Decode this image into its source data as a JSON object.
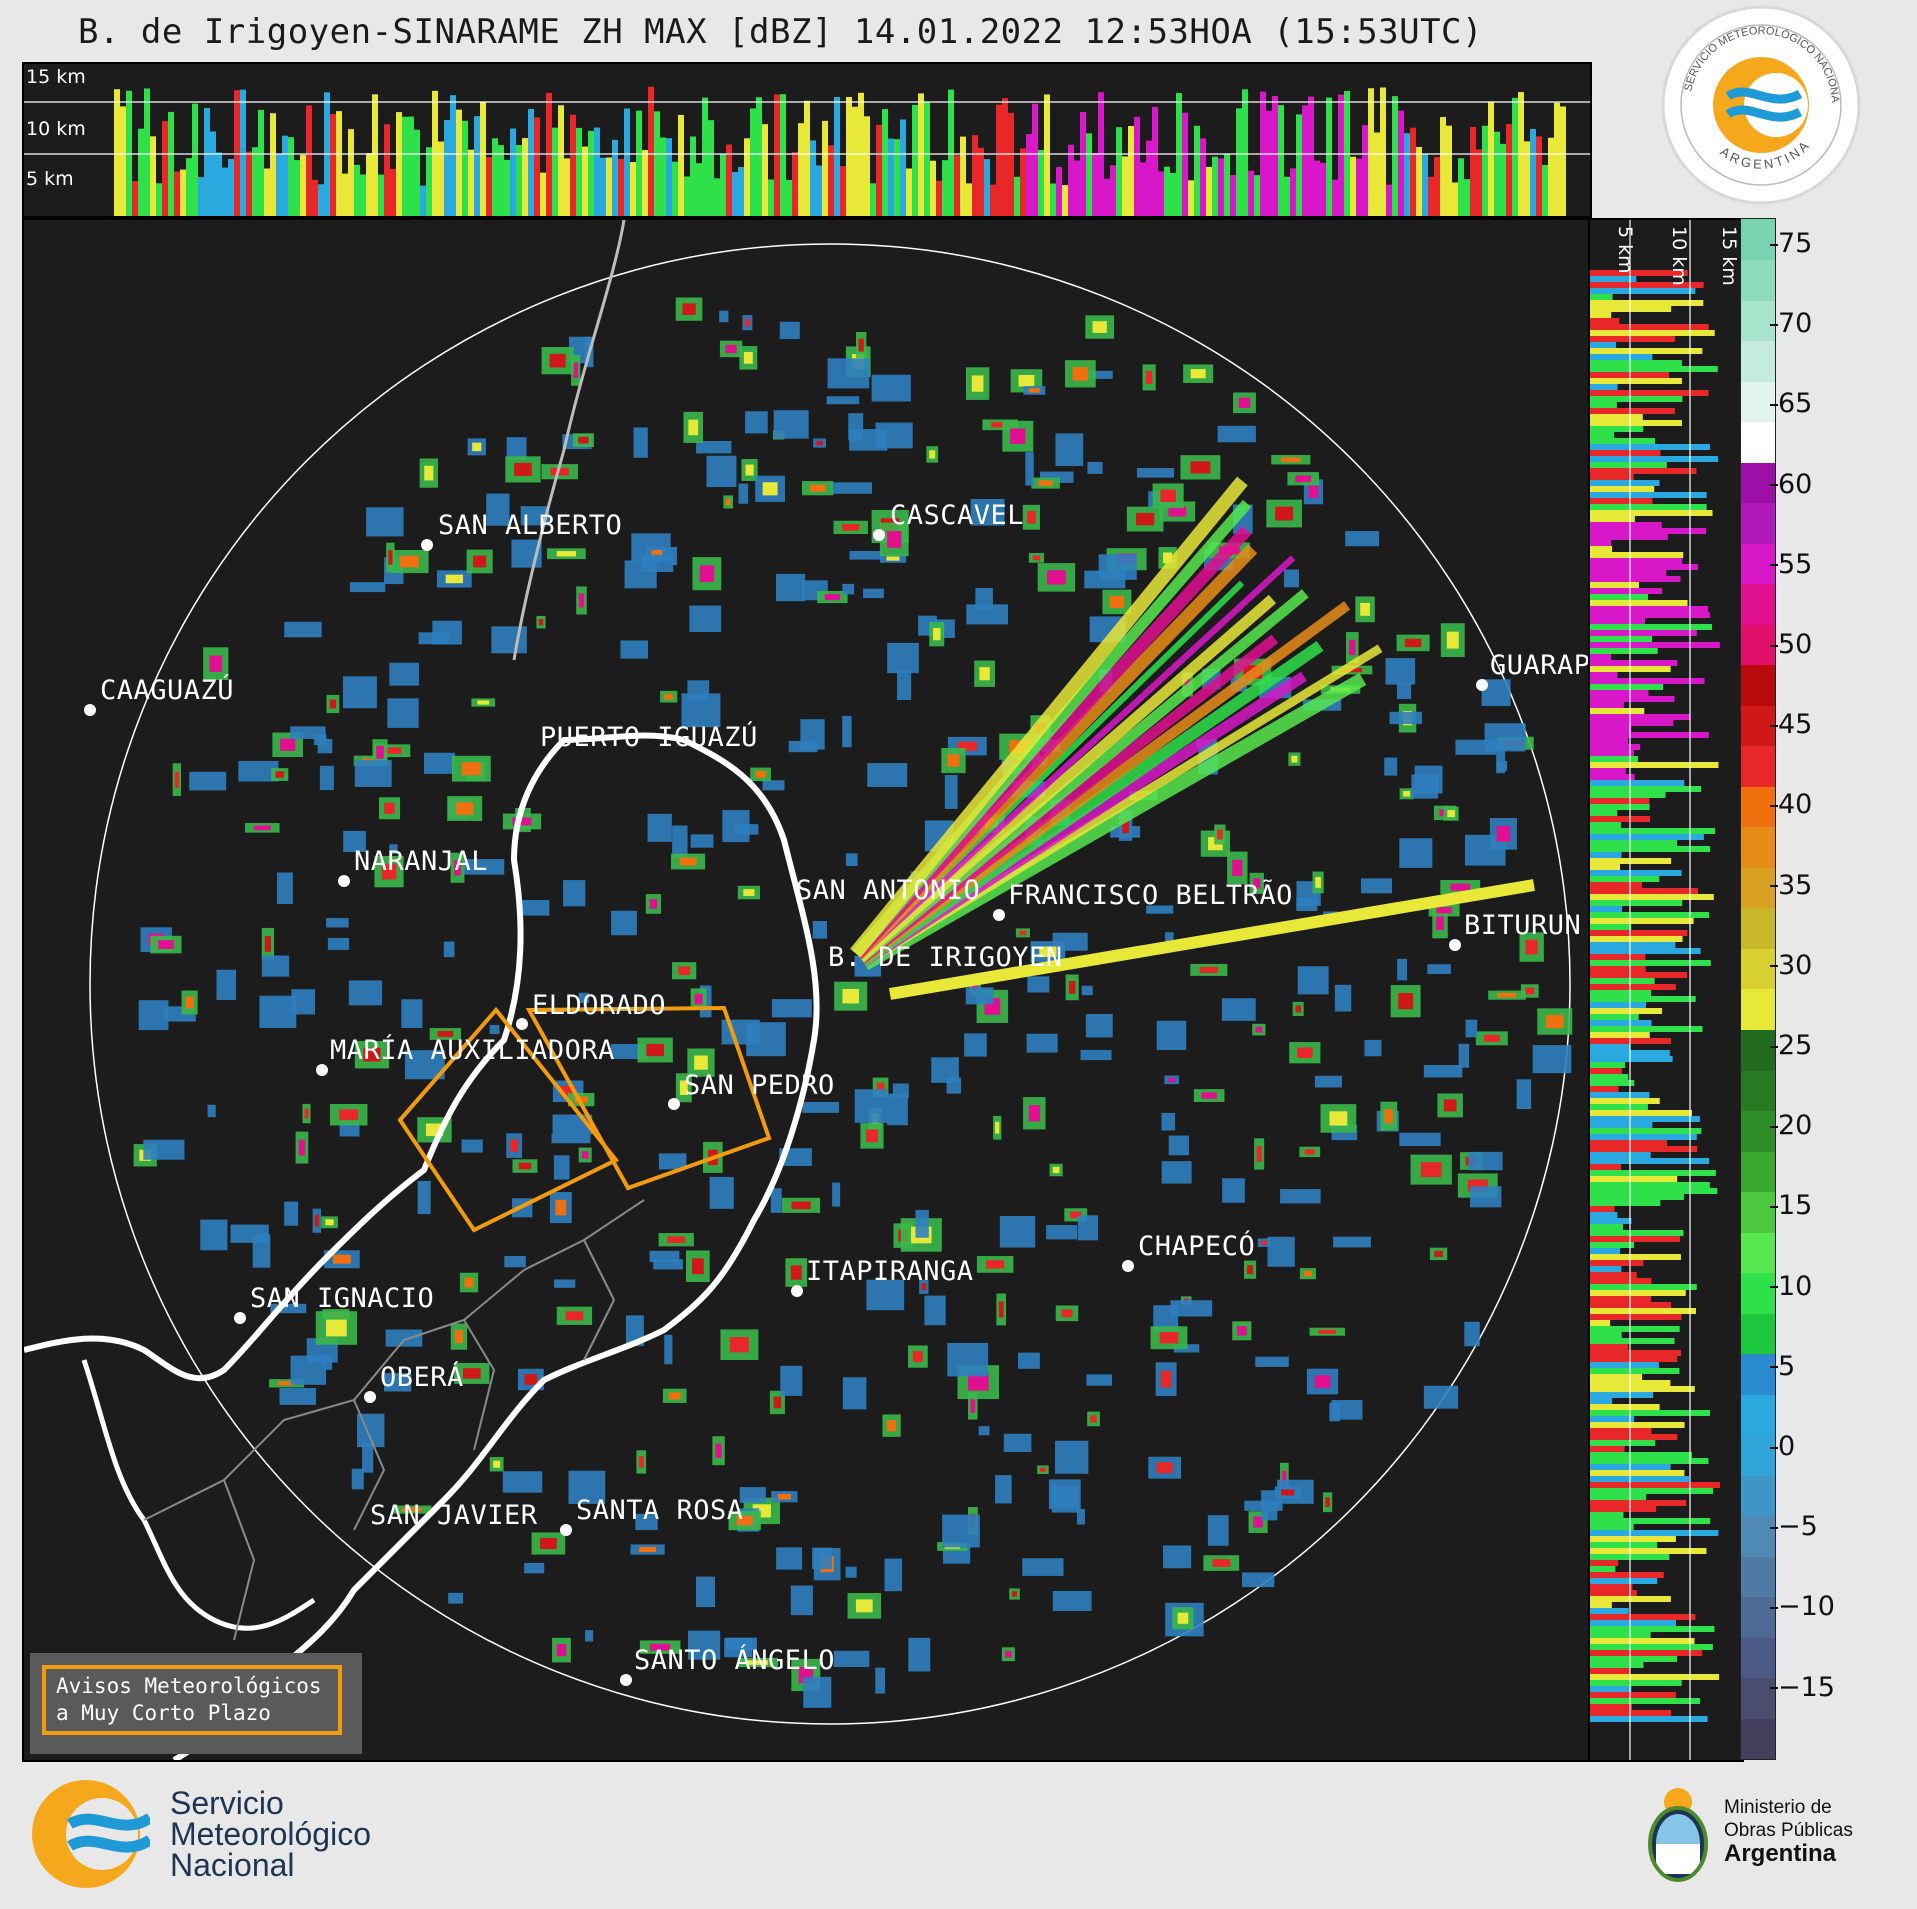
{
  "title": "B. de Irigoyen-SINARAME ZH MAX [dBZ] 14.01.2022 12:53HOA (15:53UTC)",
  "top_panel": {
    "height_labels": [
      "15 km",
      "10 km",
      "5 km"
    ]
  },
  "side_panel": {
    "height_labels": [
      "5 km",
      "10 km",
      "15 km"
    ]
  },
  "colorbar": {
    "unit": "dBZ",
    "ticks": [
      "75",
      "70",
      "65",
      "60",
      "55",
      "50",
      "45",
      "40",
      "35",
      "30",
      "25",
      "20",
      "15",
      "10",
      "5",
      "0",
      "−5",
      "−10",
      "−15"
    ],
    "colors": [
      "#44405e",
      "#4a4c70",
      "#4a5a84",
      "#4c6a94",
      "#4e7aa4",
      "#4e8ab4",
      "#3c96c8",
      "#30a4d8",
      "#2aa8e0",
      "#2a8ad0",
      "#1ec83c",
      "#2ee04a",
      "#56e84e",
      "#4cc83e",
      "#3aa82e",
      "#2e8c26",
      "#287a22",
      "#226a1e",
      "#e8e838",
      "#d8d030",
      "#c8b828",
      "#d8a020",
      "#e88c18",
      "#f07010",
      "#e82828",
      "#d01818",
      "#b80a0a",
      "#e0106a",
      "#e01090",
      "#d818c8",
      "#b018b8",
      "#9c10a8",
      "#ffffff",
      "#e0f4ec",
      "#c4ecdc",
      "#a8e4cc",
      "#8cdcbc",
      "#78d4b0"
    ]
  },
  "cities": [
    {
      "name": "SAN ALBERTO"
    },
    {
      "name": "CASCAVEL"
    },
    {
      "name": "CAAGUAZÚ"
    },
    {
      "name": "GUARAP"
    },
    {
      "name": "PUERTO IGUAZÚ"
    },
    {
      "name": "NARANJAL"
    },
    {
      "name": "SAN ANTONIO"
    },
    {
      "name": "FRANCISCO BELTRÃO"
    },
    {
      "name": "BITURUN"
    },
    {
      "name": "B. DE IRIGOYEN"
    },
    {
      "name": "ELDORADO"
    },
    {
      "name": "MARÍA AUXILIADORA"
    },
    {
      "name": "SAN PEDRO"
    },
    {
      "name": "CHAPECÓ"
    },
    {
      "name": "ITAPIRANGA"
    },
    {
      "name": "SAN IGNACIO"
    },
    {
      "name": "OBERÁ"
    },
    {
      "name": "SAN JAVIER"
    },
    {
      "name": "SANTA ROSA"
    },
    {
      "name": "SANTO ÁNGELO"
    }
  ],
  "legend": {
    "line1": "Avisos Meteorológicos",
    "line2": "a Muy Corto Plazo"
  },
  "footer": {
    "smn_line1": "Servicio",
    "smn_line2": "Meteorológico",
    "smn_line3": "Nacional",
    "ministry_line1": "Ministerio de",
    "ministry_line2": "Obras Públicas",
    "ministry_line3": "Argentina"
  },
  "badge": {
    "top_text": "SERVICIO METEOROLÓGICO NACIONAL",
    "bottom_text": "ARGENTINA"
  },
  "colors": {
    "panel_bg": "#1c1c1c",
    "warning_orange": "#f29b0e",
    "smn_orange": "#f6a81c",
    "smn_blue": "#1e9ad6"
  }
}
